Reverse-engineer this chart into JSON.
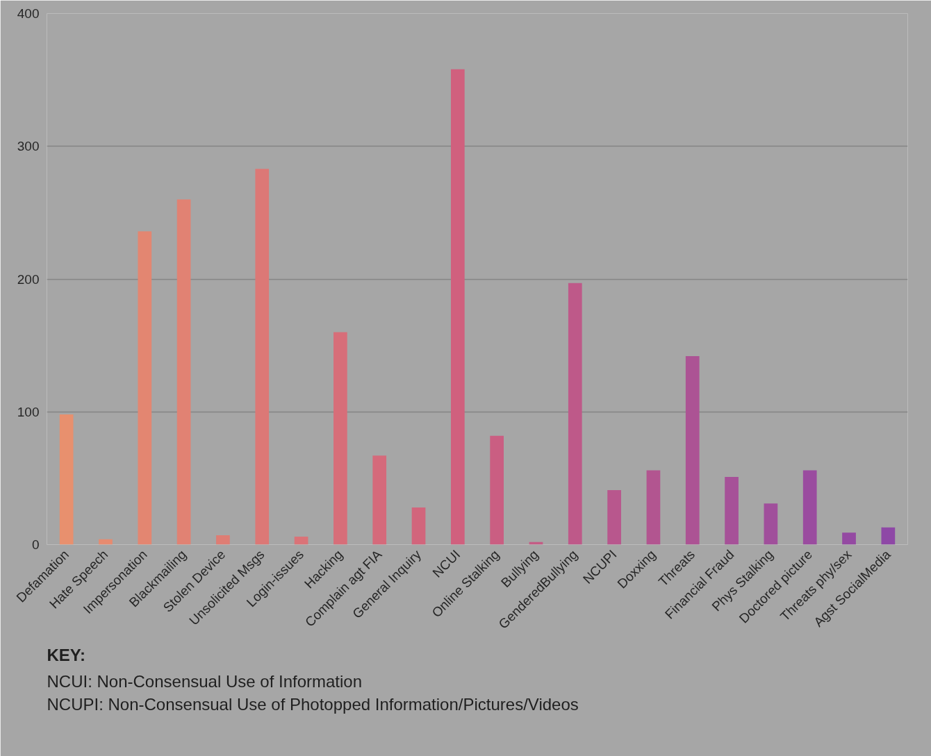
{
  "chart_data": {
    "type": "bar",
    "categories": [
      "Defamation",
      "Hate Speech",
      "Impersonation",
      "Blackmailing",
      "Stolen Device",
      "Unsolicited Msgs",
      "Login-issues",
      "Hacking",
      "Complain agt FIA",
      "General Inquiry",
      "NCUI",
      "Online Stalking",
      "Bullying",
      "GenderedBullying",
      "NCUPI",
      "Doxxing",
      "Threats",
      "Financial Fraud",
      "Phys Stalking",
      "Doctored picture",
      "Threats phy/sex",
      "Agst SocialMedia"
    ],
    "values": [
      98,
      4,
      236,
      260,
      7,
      283,
      6,
      160,
      67,
      28,
      358,
      82,
      2,
      197,
      41,
      56,
      142,
      51,
      31,
      56,
      9,
      13
    ],
    "colors": [
      "#e8906e",
      "#e68b70",
      "#e38671",
      "#e18273",
      "#de7d74",
      "#dc7876",
      "#da7378",
      "#d76e79",
      "#d56a7b",
      "#d2657c",
      "#d0607e",
      "#ca5e82",
      "#c45c85",
      "#be5989",
      "#b8578d",
      "#b25590",
      "#ac5394",
      "#a65198",
      "#a04f9b",
      "#9a4c9f",
      "#944aa2",
      "#8e48a6"
    ],
    "ylim": [
      0,
      400
    ],
    "yticks": [
      0,
      100,
      200,
      300,
      400
    ],
    "grid": "y",
    "annotations": [
      "KEY:",
      "NCUI: Non-Consensual Use of Information",
      "NCUPI: Non-Consensual Use of Photopped Information/Pictures/Videos"
    ]
  }
}
